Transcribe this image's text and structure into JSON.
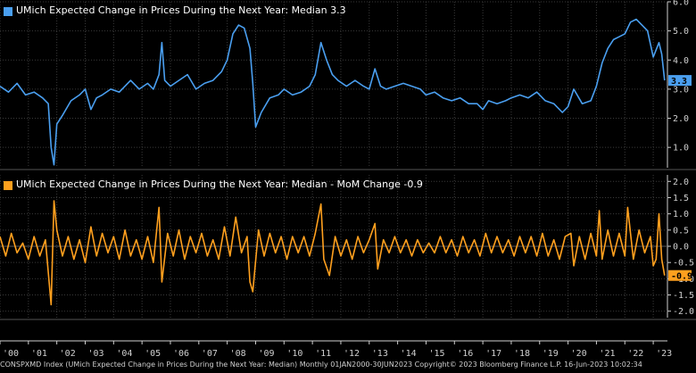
{
  "colors": {
    "top": "#4a9ff0",
    "bottom": "#ffa01e",
    "grid": "#3a3a3a",
    "axis": "#cfcfcf",
    "bg": "#000000"
  },
  "chart_data": [
    {
      "type": "line",
      "title": "UMich Expected Change in Prices During the Next Year: Median 3.3",
      "last_value_label": "3.3",
      "ylim": [
        0.3,
        6.0
      ],
      "yticks": [
        "6.0",
        "5.0",
        "4.0",
        "3.0",
        "2.0",
        "1.0"
      ],
      "ytick_values": [
        6.0,
        5.0,
        4.0,
        3.0,
        2.0,
        1.0
      ],
      "grid": true,
      "series": [
        {
          "name": "UMich Expected Change in Prices During the Next Year: Median",
          "points": [
            [
              2000.0,
              3.1
            ],
            [
              2000.3,
              2.9
            ],
            [
              2000.6,
              3.2
            ],
            [
              2000.9,
              2.8
            ],
            [
              2001.2,
              2.9
            ],
            [
              2001.5,
              2.7
            ],
            [
              2001.7,
              2.5
            ],
            [
              2001.8,
              1.0
            ],
            [
              2001.9,
              0.4
            ],
            [
              2002.0,
              1.8
            ],
            [
              2002.2,
              2.1
            ],
            [
              2002.5,
              2.6
            ],
            [
              2002.8,
              2.8
            ],
            [
              2003.0,
              3.0
            ],
            [
              2003.2,
              2.3
            ],
            [
              2003.4,
              2.7
            ],
            [
              2003.6,
              2.8
            ],
            [
              2003.9,
              3.0
            ],
            [
              2004.2,
              2.9
            ],
            [
              2004.6,
              3.3
            ],
            [
              2004.9,
              3.0
            ],
            [
              2005.2,
              3.2
            ],
            [
              2005.4,
              3.0
            ],
            [
              2005.6,
              3.5
            ],
            [
              2005.7,
              4.6
            ],
            [
              2005.8,
              3.3
            ],
            [
              2006.0,
              3.1
            ],
            [
              2006.3,
              3.3
            ],
            [
              2006.6,
              3.5
            ],
            [
              2006.9,
              3.0
            ],
            [
              2007.2,
              3.2
            ],
            [
              2007.5,
              3.3
            ],
            [
              2007.8,
              3.6
            ],
            [
              2008.0,
              4.0
            ],
            [
              2008.2,
              4.9
            ],
            [
              2008.4,
              5.2
            ],
            [
              2008.6,
              5.1
            ],
            [
              2008.8,
              4.4
            ],
            [
              2008.9,
              3.2
            ],
            [
              2009.0,
              1.7
            ],
            [
              2009.2,
              2.2
            ],
            [
              2009.5,
              2.7
            ],
            [
              2009.8,
              2.8
            ],
            [
              2010.0,
              3.0
            ],
            [
              2010.3,
              2.8
            ],
            [
              2010.6,
              2.9
            ],
            [
              2010.9,
              3.1
            ],
            [
              2011.1,
              3.5
            ],
            [
              2011.3,
              4.6
            ],
            [
              2011.5,
              4.0
            ],
            [
              2011.7,
              3.5
            ],
            [
              2011.9,
              3.3
            ],
            [
              2012.2,
              3.1
            ],
            [
              2012.5,
              3.3
            ],
            [
              2012.8,
              3.1
            ],
            [
              2013.0,
              3.0
            ],
            [
              2013.2,
              3.7
            ],
            [
              2013.4,
              3.1
            ],
            [
              2013.6,
              3.0
            ],
            [
              2013.9,
              3.1
            ],
            [
              2014.2,
              3.2
            ],
            [
              2014.5,
              3.1
            ],
            [
              2014.8,
              3.0
            ],
            [
              2015.0,
              2.8
            ],
            [
              2015.3,
              2.9
            ],
            [
              2015.6,
              2.7
            ],
            [
              2015.9,
              2.6
            ],
            [
              2016.2,
              2.7
            ],
            [
              2016.5,
              2.5
            ],
            [
              2016.8,
              2.5
            ],
            [
              2017.0,
              2.3
            ],
            [
              2017.2,
              2.6
            ],
            [
              2017.5,
              2.5
            ],
            [
              2017.8,
              2.6
            ],
            [
              2018.0,
              2.7
            ],
            [
              2018.3,
              2.8
            ],
            [
              2018.6,
              2.7
            ],
            [
              2018.9,
              2.9
            ],
            [
              2019.2,
              2.6
            ],
            [
              2019.5,
              2.5
            ],
            [
              2019.8,
              2.2
            ],
            [
              2020.0,
              2.4
            ],
            [
              2020.2,
              3.0
            ],
            [
              2020.5,
              2.5
            ],
            [
              2020.8,
              2.6
            ],
            [
              2021.0,
              3.1
            ],
            [
              2021.2,
              3.9
            ],
            [
              2021.4,
              4.4
            ],
            [
              2021.6,
              4.7
            ],
            [
              2021.8,
              4.8
            ],
            [
              2022.0,
              4.9
            ],
            [
              2022.2,
              5.3
            ],
            [
              2022.4,
              5.4
            ],
            [
              2022.6,
              5.2
            ],
            [
              2022.8,
              5.0
            ],
            [
              2023.0,
              4.1
            ],
            [
              2023.2,
              4.6
            ],
            [
              2023.3,
              4.2
            ],
            [
              2023.4,
              3.3
            ]
          ]
        }
      ]
    },
    {
      "type": "line",
      "title": "UMich Expected Change in Prices During the Next Year: Median - MoM Change -0.9",
      "last_value_label": "-0.9",
      "ylim": [
        -2.2,
        2.2
      ],
      "yticks": [
        "2.0",
        "1.5",
        "1.0",
        "0.5",
        "0.0",
        "-0.5",
        "-1.0",
        "-1.5",
        "-2.0"
      ],
      "ytick_values": [
        2.0,
        1.5,
        1.0,
        0.5,
        0.0,
        -0.5,
        -1.0,
        -1.5,
        -2.0
      ],
      "grid": true,
      "series": [
        {
          "name": "UMich Expected Change in Prices During the Next Year: Median - MoM Change",
          "points": [
            [
              2000.0,
              0.3
            ],
            [
              2000.2,
              -0.3
            ],
            [
              2000.4,
              0.4
            ],
            [
              2000.6,
              -0.2
            ],
            [
              2000.8,
              0.1
            ],
            [
              2001.0,
              -0.4
            ],
            [
              2001.2,
              0.3
            ],
            [
              2001.4,
              -0.3
            ],
            [
              2001.6,
              0.2
            ],
            [
              2001.8,
              -1.8
            ],
            [
              2001.9,
              1.4
            ],
            [
              2002.0,
              0.5
            ],
            [
              2002.2,
              -0.3
            ],
            [
              2002.4,
              0.3
            ],
            [
              2002.6,
              -0.4
            ],
            [
              2002.8,
              0.2
            ],
            [
              2003.0,
              -0.5
            ],
            [
              2003.2,
              0.6
            ],
            [
              2003.4,
              -0.3
            ],
            [
              2003.6,
              0.4
            ],
            [
              2003.8,
              -0.2
            ],
            [
              2004.0,
              0.3
            ],
            [
              2004.2,
              -0.4
            ],
            [
              2004.4,
              0.5
            ],
            [
              2004.6,
              -0.3
            ],
            [
              2004.8,
              0.2
            ],
            [
              2005.0,
              -0.4
            ],
            [
              2005.2,
              0.3
            ],
            [
              2005.4,
              -0.5
            ],
            [
              2005.6,
              1.2
            ],
            [
              2005.7,
              -1.1
            ],
            [
              2005.9,
              0.4
            ],
            [
              2006.1,
              -0.3
            ],
            [
              2006.3,
              0.5
            ],
            [
              2006.5,
              -0.4
            ],
            [
              2006.7,
              0.3
            ],
            [
              2006.9,
              -0.2
            ],
            [
              2007.1,
              0.4
            ],
            [
              2007.3,
              -0.3
            ],
            [
              2007.5,
              0.2
            ],
            [
              2007.7,
              -0.4
            ],
            [
              2007.9,
              0.6
            ],
            [
              2008.1,
              -0.3
            ],
            [
              2008.3,
              0.9
            ],
            [
              2008.5,
              -0.2
            ],
            [
              2008.7,
              0.3
            ],
            [
              2008.8,
              -1.1
            ],
            [
              2008.9,
              -1.4
            ],
            [
              2009.1,
              0.5
            ],
            [
              2009.3,
              -0.3
            ],
            [
              2009.5,
              0.4
            ],
            [
              2009.7,
              -0.2
            ],
            [
              2009.9,
              0.3
            ],
            [
              2010.1,
              -0.4
            ],
            [
              2010.3,
              0.3
            ],
            [
              2010.5,
              -0.2
            ],
            [
              2010.7,
              0.3
            ],
            [
              2010.9,
              -0.3
            ],
            [
              2011.1,
              0.4
            ],
            [
              2011.3,
              1.3
            ],
            [
              2011.4,
              -0.4
            ],
            [
              2011.6,
              -0.9
            ],
            [
              2011.8,
              0.3
            ],
            [
              2012.0,
              -0.3
            ],
            [
              2012.2,
              0.2
            ],
            [
              2012.4,
              -0.4
            ],
            [
              2012.6,
              0.3
            ],
            [
              2012.8,
              -0.2
            ],
            [
              2013.0,
              0.2
            ],
            [
              2013.2,
              0.7
            ],
            [
              2013.3,
              -0.7
            ],
            [
              2013.5,
              0.2
            ],
            [
              2013.7,
              -0.2
            ],
            [
              2013.9,
              0.3
            ],
            [
              2014.1,
              -0.2
            ],
            [
              2014.3,
              0.2
            ],
            [
              2014.5,
              -0.3
            ],
            [
              2014.7,
              0.2
            ],
            [
              2014.9,
              -0.2
            ],
            [
              2015.1,
              0.1
            ],
            [
              2015.3,
              -0.2
            ],
            [
              2015.5,
              0.3
            ],
            [
              2015.7,
              -0.2
            ],
            [
              2015.9,
              0.2
            ],
            [
              2016.1,
              -0.3
            ],
            [
              2016.3,
              0.3
            ],
            [
              2016.5,
              -0.2
            ],
            [
              2016.7,
              0.2
            ],
            [
              2016.9,
              -0.3
            ],
            [
              2017.1,
              0.4
            ],
            [
              2017.3,
              -0.2
            ],
            [
              2017.5,
              0.3
            ],
            [
              2017.7,
              -0.2
            ],
            [
              2017.9,
              0.2
            ],
            [
              2018.1,
              -0.3
            ],
            [
              2018.3,
              0.3
            ],
            [
              2018.5,
              -0.2
            ],
            [
              2018.7,
              0.3
            ],
            [
              2018.9,
              -0.3
            ],
            [
              2019.1,
              0.4
            ],
            [
              2019.3,
              -0.3
            ],
            [
              2019.5,
              0.2
            ],
            [
              2019.7,
              -0.4
            ],
            [
              2019.9,
              0.3
            ],
            [
              2020.1,
              0.4
            ],
            [
              2020.2,
              -0.6
            ],
            [
              2020.4,
              0.3
            ],
            [
              2020.6,
              -0.4
            ],
            [
              2020.8,
              0.4
            ],
            [
              2021.0,
              -0.3
            ],
            [
              2021.1,
              1.1
            ],
            [
              2021.2,
              -0.4
            ],
            [
              2021.4,
              0.5
            ],
            [
              2021.6,
              -0.3
            ],
            [
              2021.8,
              0.4
            ],
            [
              2022.0,
              -0.3
            ],
            [
              2022.1,
              1.2
            ],
            [
              2022.3,
              -0.4
            ],
            [
              2022.5,
              0.5
            ],
            [
              2022.7,
              -0.2
            ],
            [
              2022.9,
              0.3
            ],
            [
              2023.0,
              -0.6
            ],
            [
              2023.1,
              -0.4
            ],
            [
              2023.2,
              1.0
            ],
            [
              2023.3,
              -0.4
            ],
            [
              2023.4,
              -0.9
            ]
          ]
        }
      ]
    }
  ],
  "xaxis": {
    "ticks": [
      "'00",
      "'01",
      "'02",
      "'03",
      "'04",
      "'05",
      "'06",
      "'07",
      "'08",
      "'09",
      "'10",
      "'11",
      "'12",
      "'13",
      "'14",
      "'15",
      "'16",
      "'17",
      "'18",
      "'19",
      "'20",
      "'21",
      "'22",
      "'23"
    ],
    "tick_values": [
      2000,
      2001,
      2002,
      2003,
      2004,
      2005,
      2006,
      2007,
      2008,
      2009,
      2010,
      2011,
      2012,
      2013,
      2014,
      2015,
      2016,
      2017,
      2018,
      2019,
      2020,
      2021,
      2022,
      2023
    ],
    "xlim": [
      2000.0,
      2023.5
    ]
  },
  "footer": "CONSPXMD Index (UMich Expected Change in Prices During the Next Year: Median)  Monthly 01JAN2000-30JUN2023 Copyright© 2023 Bloomberg Finance L.P. 16-Jun-2023 10:02:34"
}
